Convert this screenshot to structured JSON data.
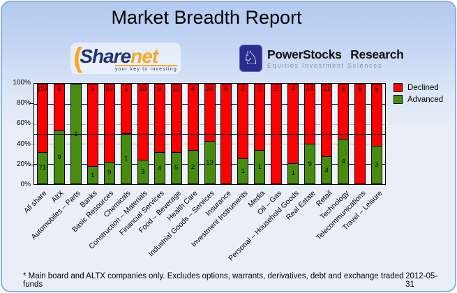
{
  "title": "Market Breadth Report",
  "logos": {
    "sharenet": {
      "text_share": "Share",
      "text_net": "net",
      "tagline": "your key to investing",
      "brand_navy": "#243373",
      "brand_orange": "#f7a823"
    },
    "powerstocks": {
      "name": "PowerStocks Research",
      "subtitle": "Equities Investment Sciences",
      "badge_color": "#2b2d8e",
      "knight_glyph": "♘"
    }
  },
  "chart_data": {
    "type": "bar",
    "stacked": true,
    "note": "stacked 100% columns; heights = count / (declined+advanced)",
    "categories": [
      "All share",
      "AltX",
      "Automobiles – Parts",
      "Banks",
      "Basic Resources",
      "Chemicals",
      "Construction – Materials",
      "Financial Services",
      "Food – Beverage",
      "Health Care",
      "Industrial Goods – Services",
      "Insurance",
      "Investment Instruments",
      "Media",
      "Oil – Gas",
      "Personal – Household Goods",
      "Real Estate",
      "Retail",
      "Technology",
      "Telecommunications",
      "Travel – Leisure"
    ],
    "series": [
      {
        "name": "Declined",
        "color": "#ff0000",
        "values": [
          157,
          8,
          0,
          5,
          33,
          1,
          10,
          9,
          11,
          4,
          18,
          6,
          3,
          2,
          2,
          4,
          14,
          11,
          5,
          5,
          5
        ]
      },
      {
        "name": "Advanced",
        "color": "#478c0c",
        "values": [
          71,
          9,
          1,
          1,
          9,
          1,
          3,
          4,
          5,
          2,
          13,
          0,
          1,
          1,
          0,
          1,
          9,
          4,
          4,
          0,
          3
        ]
      }
    ],
    "y_ticks": [
      "100%",
      "80%",
      "60%",
      "40%",
      "20%",
      "0%"
    ],
    "ylim": [
      0,
      100
    ],
    "reference_line_pct": 50,
    "gridlines": [
      {
        "pct": 80,
        "color": "#000080"
      },
      {
        "pct": 60,
        "color": "#b3b3b3"
      },
      {
        "pct": 40,
        "color": "#b3b3b3"
      },
      {
        "pct": 20,
        "color": "#000080"
      }
    ],
    "legend_position": "right"
  },
  "footer": {
    "note": "* Main board and ALTX companies only. Excludes options, warrants, derivatives, debt and exchange traded funds",
    "date": "2012-05-31"
  }
}
